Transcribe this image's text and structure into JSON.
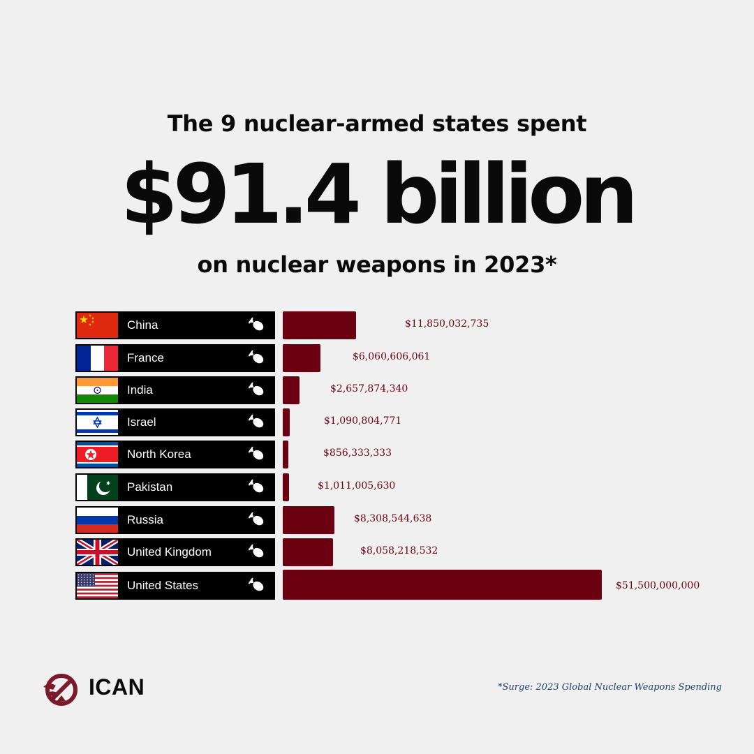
{
  "headline": {
    "line1": "The 9 nuclear-armed states spent",
    "amount": "$91.4 billion",
    "line2": "on nuclear weapons in 2023*"
  },
  "chart_data": {
    "type": "bar",
    "orientation": "horizontal",
    "title": "",
    "categories": [
      "China",
      "France",
      "India",
      "Israel",
      "North Korea",
      "Pakistan",
      "Russia",
      "United Kingdom",
      "United States"
    ],
    "values": [
      11850032735,
      6060606061,
      2657874340,
      1090804771,
      856333333,
      1011005630,
      8308544638,
      8058218532,
      51500000000
    ],
    "value_labels": [
      "$11,850,032,735",
      "$6,060,606,061",
      "$2,657,874,340",
      "$1,090,804,771",
      "$856,333,333",
      "$1,011,005,630",
      "$8,308,544,638",
      "$8,058,218,532",
      "$51,500,000,000"
    ],
    "flags": [
      "china-flag-icon",
      "france-flag-icon",
      "india-flag-icon",
      "israel-flag-icon",
      "north-korea-flag-icon",
      "pakistan-flag-icon",
      "russia-flag-icon",
      "uk-flag-icon",
      "usa-flag-icon"
    ],
    "row_icon": "bomb-icon",
    "bar_color": "#6b0010",
    "label_bg": "#000000",
    "grid": false,
    "legend": "none"
  },
  "brand": {
    "logo_text": "ICAN",
    "logo_color": "#7a1a2b"
  },
  "footnote": "*Surge: 2023 Global Nuclear Weapons Spending"
}
